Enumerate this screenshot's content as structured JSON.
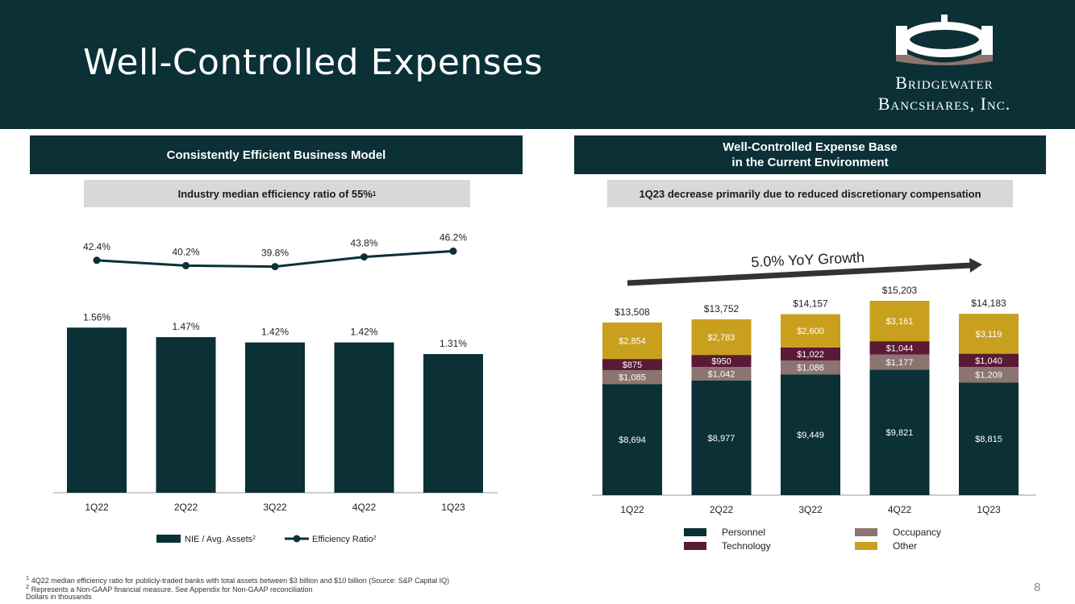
{
  "title": "Well-Controlled Expenses",
  "logo": {
    "line1": "Bridgewater",
    "line2": "Bancshares, Inc."
  },
  "left": {
    "banner": "Consistently Efficient Business Model",
    "subbanner": "Industry median efficiency ratio of 55%",
    "subbanner_sup": "1"
  },
  "right": {
    "banner_line1": "Well-Controlled Expense Base",
    "banner_line2": "in the Current Environment",
    "subbanner": "1Q23 decrease primarily due to reduced discretionary compensation",
    "growth_label": "5.0% YoY Growth"
  },
  "chart_data": [
    {
      "type": "bar",
      "categories": [
        "1Q22",
        "2Q22",
        "3Q22",
        "4Q22",
        "1Q23"
      ],
      "series": [
        {
          "name": "NIE / Avg. Assets",
          "sup": "2",
          "values": [
            1.56,
            1.47,
            1.42,
            1.42,
            1.31
          ],
          "labels": [
            "1.56%",
            "1.47%",
            "1.42%",
            "1.42%",
            "1.31%"
          ],
          "color": "#0b3036"
        },
        {
          "name": "Efficiency Ratio",
          "sup": "2",
          "type": "line",
          "values": [
            42.4,
            40.2,
            39.8,
            43.8,
            46.2
          ],
          "labels": [
            "42.4%",
            "40.2%",
            "39.8%",
            "43.8%",
            "46.2%"
          ],
          "color": "#0b3036"
        }
      ],
      "ylim": [
        0,
        1.6
      ],
      "line_ylim": [
        20,
        50
      ]
    },
    {
      "type": "bar",
      "stacked": true,
      "categories": [
        "1Q22",
        "2Q22",
        "3Q22",
        "4Q22",
        "1Q23"
      ],
      "series": [
        {
          "name": "Personnel",
          "values": [
            8694,
            8977,
            9449,
            9821,
            8815
          ],
          "labels": [
            "$8,694",
            "$8,977",
            "$9,449",
            "$9,821",
            "$8,815"
          ],
          "color": "#0b3036"
        },
        {
          "name": "Occupancy",
          "values": [
            1085,
            1042,
            1086,
            1177,
            1209
          ],
          "labels": [
            "$1,085",
            "$1,042",
            "$1,086",
            "$1,177",
            "$1,209"
          ],
          "color": "#8c7470"
        },
        {
          "name": "Technology",
          "values": [
            875,
            950,
            1022,
            1044,
            1040
          ],
          "labels": [
            "$875",
            "$950",
            "$1,022",
            "$1,044",
            "$1,040"
          ],
          "color": "#5a1a36"
        },
        {
          "name": "Other",
          "values": [
            2854,
            2783,
            2600,
            3161,
            3119
          ],
          "labels": [
            "$2,854",
            "$2,783",
            "$2,600",
            "$3,161",
            "$3,119"
          ],
          "color": "#c9a01e"
        }
      ],
      "totals": [
        "$13,508",
        "$13,752",
        "$14,157",
        "$15,203",
        "$14,183"
      ],
      "total_values": [
        13508,
        13752,
        14157,
        15203,
        14183
      ],
      "ylim": [
        0,
        16000
      ]
    }
  ],
  "footnotes": {
    "note1_sup": "1",
    "note1": "4Q22 median efficiency ratio for publicly-traded banks with total assets between $3 billion and $10 billion (Source: S&P Capital IQ)",
    "note2_sup": "2",
    "note2": "Represents a Non-GAAP financial measure. See Appendix for Non-GAAP reconciliation",
    "note3": "Dollars in thousands"
  },
  "page_number": "8",
  "colors": {
    "navy": "#0b3036",
    "grey": "#d8d8d8",
    "mauve": "#8c7470",
    "plum": "#5a1a36",
    "gold": "#c9a01e"
  }
}
